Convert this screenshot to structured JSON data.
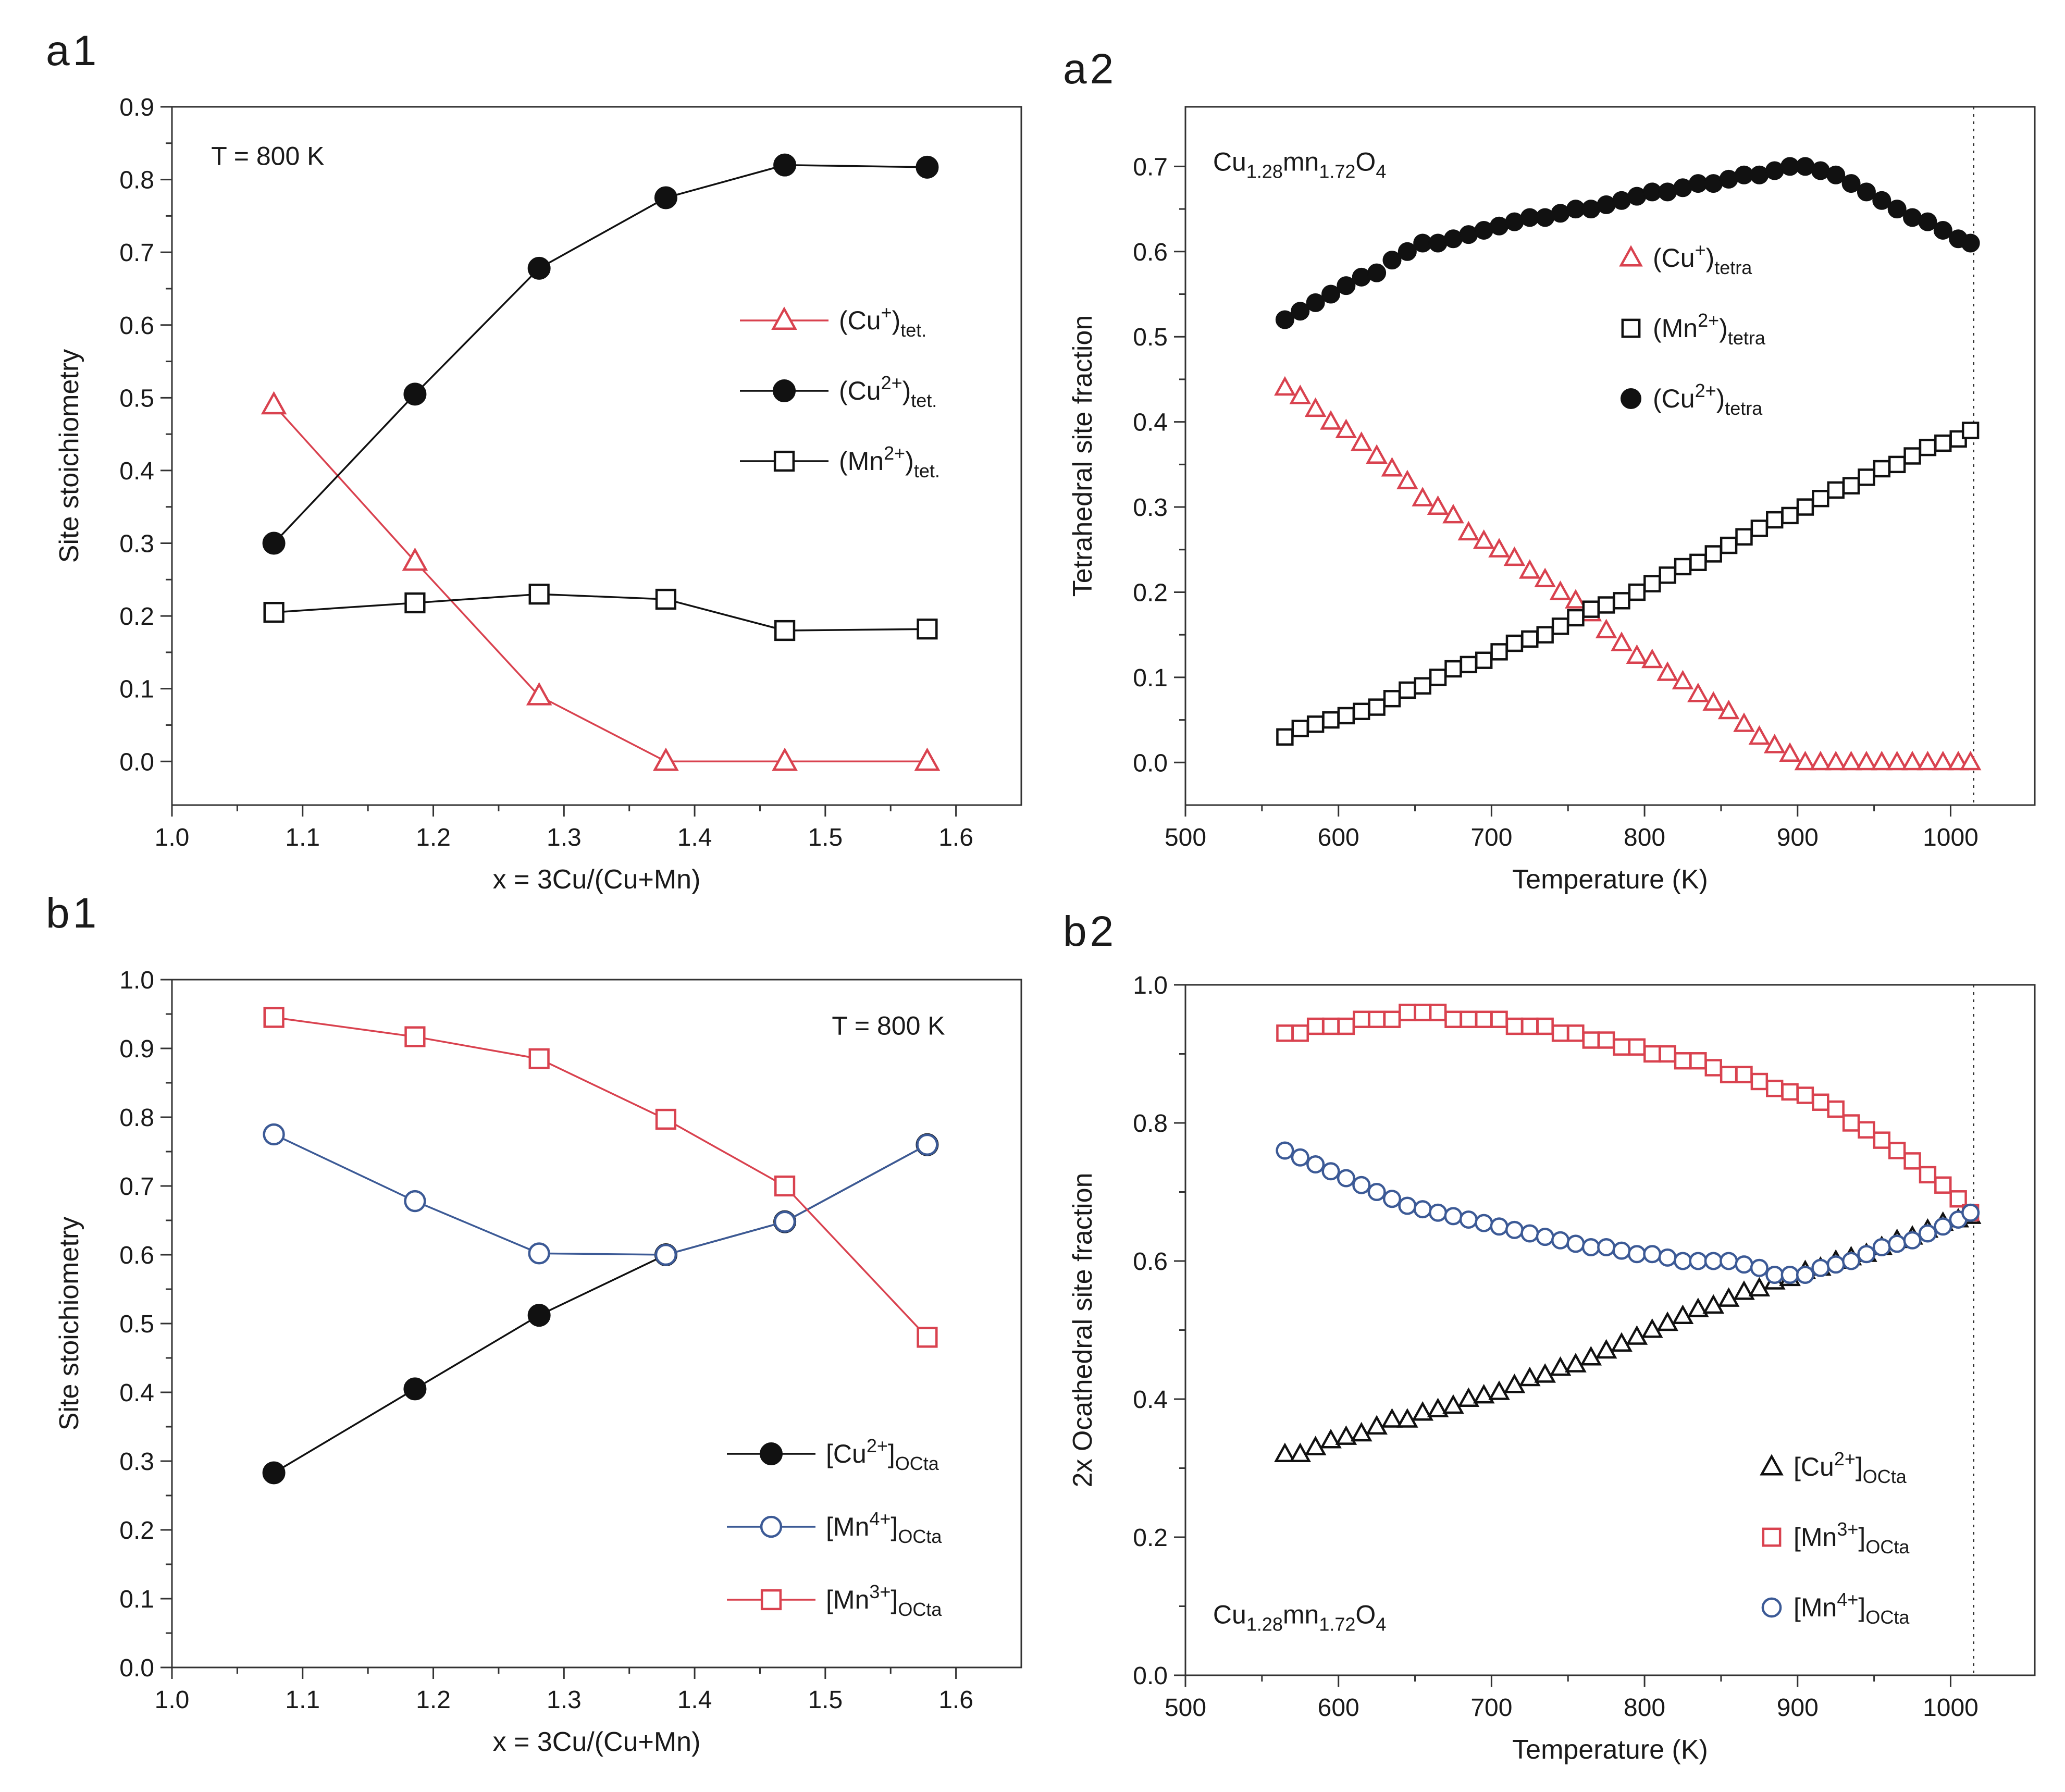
{
  "chart_data": [
    {
      "id": "a1",
      "panel_label": "a1",
      "type": "line",
      "xlabel": "x = 3Cu/(Cu+Mn)",
      "ylabel": "Site stoichiometry",
      "xlim": [
        1.0,
        1.65
      ],
      "ylim": [
        -0.06,
        0.9
      ],
      "xticks": [
        "1.0",
        "1.1",
        "1.2",
        "1.3",
        "1.4",
        "1.5",
        "1.6"
      ],
      "yticks": [
        "0.0",
        "0.1",
        "0.2",
        "0.3",
        "0.4",
        "0.5",
        "0.6",
        "0.7",
        "0.8",
        "0.9"
      ],
      "annotation": {
        "text": "T = 800 K",
        "x": 1.03,
        "y": 0.82
      },
      "legend_position": "center-right",
      "x": [
        1.078,
        1.186,
        1.281,
        1.378,
        1.469,
        1.578
      ],
      "series": [
        {
          "name": "(Cu+)tet.",
          "label": {
            "base": "(Cu",
            "sup": "+",
            "mid": ")",
            "sub": "tet."
          },
          "color": "#d9424f",
          "marker": "triangle-open",
          "values": [
            0.49,
            0.275,
            0.09,
            0.0,
            0.0,
            0.0
          ]
        },
        {
          "name": "(Cu2+)tet.",
          "label": {
            "base": "(Cu",
            "sup": "2+",
            "mid": ")",
            "sub": "tet."
          },
          "color": "#111111",
          "marker": "circle-filled",
          "values": [
            0.3,
            0.505,
            0.678,
            0.775,
            0.82,
            0.817
          ]
        },
        {
          "name": "(Mn2+)tet.",
          "label": {
            "base": "(Mn",
            "sup": "2+",
            "mid": ")",
            "sub": "tet."
          },
          "color": "#111111",
          "marker": "square-open",
          "values": [
            0.205,
            0.218,
            0.23,
            0.223,
            0.18,
            0.182
          ]
        }
      ]
    },
    {
      "id": "a2",
      "panel_label": "a2",
      "type": "scatter",
      "xlabel": "Temperature (K)",
      "ylabel": "Tetrahedral site fraction",
      "xlim": [
        500,
        1055
      ],
      "ylim": [
        -0.05,
        0.77
      ],
      "xticks": [
        "500",
        "600",
        "700",
        "800",
        "900",
        "1000"
      ],
      "yticks": [
        "0.0",
        "0.1",
        "0.2",
        "0.3",
        "0.4",
        "0.5",
        "0.6",
        "0.7"
      ],
      "vline_x": 1015,
      "annotation": {
        "base": "Cu",
        "sub1": "1.28",
        "mid": "mn",
        "sub2": "1.72",
        "tail": "O",
        "sub3": "4",
        "x": 518,
        "y": 0.695
      },
      "legend_position": "center-right",
      "x": [
        565,
        575,
        585,
        595,
        605,
        615,
        625,
        635,
        645,
        655,
        665,
        675,
        685,
        695,
        705,
        715,
        725,
        735,
        745,
        755,
        765,
        775,
        785,
        795,
        805,
        815,
        825,
        835,
        845,
        855,
        865,
        875,
        885,
        895,
        905,
        915,
        925,
        935,
        945,
        955,
        965,
        975,
        985,
        995,
        1005,
        1013
      ],
      "series": [
        {
          "name": "(Cu+)tetra",
          "label": {
            "base": "(Cu",
            "sup": "+",
            "mid": ")",
            "sub": "tetra"
          },
          "color": "#d9424f",
          "marker": "triangle-open",
          "values": [
            0.44,
            0.43,
            0.415,
            0.4,
            0.39,
            0.375,
            0.36,
            0.345,
            0.33,
            0.31,
            0.3,
            0.29,
            0.27,
            0.26,
            0.25,
            0.24,
            0.225,
            0.215,
            0.2,
            0.19,
            0.175,
            0.155,
            0.14,
            0.125,
            0.12,
            0.105,
            0.095,
            0.08,
            0.07,
            0.06,
            0.045,
            0.03,
            0.02,
            0.01,
            0.0,
            0.0,
            0.0,
            0.0,
            0.0,
            0.0,
            0.0,
            0.0,
            0.0,
            0.0,
            0.0,
            0.0
          ]
        },
        {
          "name": "(Mn2+)tetra",
          "label": {
            "base": "(Mn",
            "sup": "2+",
            "mid": ")",
            "sub": "tetra"
          },
          "color": "#111111",
          "marker": "square-open",
          "values": [
            0.03,
            0.04,
            0.045,
            0.05,
            0.055,
            0.06,
            0.065,
            0.075,
            0.085,
            0.09,
            0.1,
            0.11,
            0.115,
            0.12,
            0.13,
            0.14,
            0.145,
            0.15,
            0.16,
            0.17,
            0.18,
            0.185,
            0.19,
            0.2,
            0.21,
            0.22,
            0.23,
            0.235,
            0.245,
            0.255,
            0.265,
            0.275,
            0.285,
            0.29,
            0.3,
            0.31,
            0.32,
            0.325,
            0.335,
            0.345,
            0.35,
            0.36,
            0.37,
            0.375,
            0.38,
            0.39
          ]
        },
        {
          "name": "(Cu2+)tetra",
          "label": {
            "base": "(Cu",
            "sup": "2+",
            "mid": ")",
            "sub": "tetra"
          },
          "color": "#111111",
          "marker": "circle-filled",
          "values": [
            0.52,
            0.53,
            0.54,
            0.55,
            0.56,
            0.57,
            0.575,
            0.59,
            0.6,
            0.61,
            0.61,
            0.615,
            0.62,
            0.625,
            0.63,
            0.635,
            0.64,
            0.64,
            0.645,
            0.65,
            0.65,
            0.655,
            0.66,
            0.665,
            0.67,
            0.67,
            0.675,
            0.68,
            0.68,
            0.685,
            0.69,
            0.69,
            0.695,
            0.7,
            0.7,
            0.695,
            0.69,
            0.68,
            0.67,
            0.66,
            0.65,
            0.64,
            0.635,
            0.625,
            0.615,
            0.61
          ]
        }
      ]
    },
    {
      "id": "b1",
      "panel_label": "b1",
      "type": "line",
      "xlabel": "x = 3Cu/(Cu+Mn)",
      "ylabel": "Site stoichiometry",
      "xlim": [
        1.0,
        1.65
      ],
      "ylim": [
        0.0,
        1.0
      ],
      "xticks": [
        "1.0",
        "1.1",
        "1.2",
        "1.3",
        "1.4",
        "1.5",
        "1.6"
      ],
      "yticks": [
        "0.0",
        "0.1",
        "0.2",
        "0.3",
        "0.4",
        "0.5",
        "0.6",
        "0.7",
        "0.8",
        "0.9",
        "1.0"
      ],
      "annotation": {
        "text": "T = 800 K",
        "x": 1.505,
        "y": 0.92
      },
      "legend_position": "bottom-right",
      "x": [
        1.078,
        1.186,
        1.281,
        1.378,
        1.469,
        1.578
      ],
      "series": [
        {
          "name": "[Cu2+]OCta",
          "label": {
            "base": "[Cu",
            "sup": "2+",
            "mid": "]",
            "sub": "OCta"
          },
          "color": "#111111",
          "marker": "circle-filled",
          "values": [
            0.283,
            0.405,
            0.512,
            0.6,
            0.648,
            0.76
          ]
        },
        {
          "name": "[Mn4+]OCta",
          "label": {
            "base": "[Mn",
            "sup": "4+",
            "mid": "]",
            "sub": "OCta"
          },
          "color": "#3c5a96",
          "marker": "circle-open",
          "values": [
            0.775,
            0.678,
            0.602,
            0.6,
            0.648,
            0.76
          ]
        },
        {
          "name": "[Mn3+]OCta",
          "label": {
            "base": "[Mn",
            "sup": "3+",
            "mid": "]",
            "sub": "OCta"
          },
          "color": "#d9424f",
          "marker": "square-open",
          "values": [
            0.945,
            0.917,
            0.885,
            0.797,
            0.7,
            0.48
          ]
        }
      ]
    },
    {
      "id": "b2",
      "panel_label": "b2",
      "type": "scatter",
      "xlabel": "Temperature (K)",
      "ylabel": "2x Ocathedral site fraction",
      "xlim": [
        500,
        1055
      ],
      "ylim": [
        0.0,
        1.0
      ],
      "xticks": [
        "500",
        "600",
        "700",
        "800",
        "900",
        "1000"
      ],
      "yticks": [
        "0.0",
        "0.2",
        "0.4",
        "0.6",
        "0.8",
        "1.0"
      ],
      "vline_x": 1015,
      "annotation": {
        "base": "Cu",
        "sub1": "1.28",
        "mid": "mn",
        "sub2": "1.72",
        "tail": "O",
        "sub3": "4",
        "x": 518,
        "y": 0.075
      },
      "legend_position": "bottom-right",
      "x": [
        565,
        575,
        585,
        595,
        605,
        615,
        625,
        635,
        645,
        655,
        665,
        675,
        685,
        695,
        705,
        715,
        725,
        735,
        745,
        755,
        765,
        775,
        785,
        795,
        805,
        815,
        825,
        835,
        845,
        855,
        865,
        875,
        885,
        895,
        905,
        915,
        925,
        935,
        945,
        955,
        965,
        975,
        985,
        995,
        1005,
        1013
      ],
      "series": [
        {
          "name": "[Cu2+]OCta",
          "label": {
            "base": "[Cu",
            "sup": "2+",
            "mid": "]",
            "sub": "OCta"
          },
          "color": "#111111",
          "marker": "triangle-open",
          "values": [
            0.32,
            0.32,
            0.33,
            0.34,
            0.345,
            0.35,
            0.36,
            0.37,
            0.37,
            0.38,
            0.385,
            0.39,
            0.4,
            0.405,
            0.41,
            0.42,
            0.43,
            0.435,
            0.445,
            0.45,
            0.46,
            0.47,
            0.48,
            0.49,
            0.5,
            0.51,
            0.52,
            0.53,
            0.535,
            0.545,
            0.555,
            0.56,
            0.57,
            0.575,
            0.585,
            0.59,
            0.6,
            0.605,
            0.61,
            0.62,
            0.63,
            0.635,
            0.645,
            0.655,
            0.66,
            0.665
          ]
        },
        {
          "name": "[Mn3+]OCta",
          "label": {
            "base": "[Mn",
            "sup": "3+",
            "mid": "]",
            "sub": "OCta"
          },
          "color": "#d9424f",
          "marker": "square-open",
          "values": [
            0.93,
            0.93,
            0.94,
            0.94,
            0.94,
            0.95,
            0.95,
            0.95,
            0.96,
            0.96,
            0.96,
            0.95,
            0.95,
            0.95,
            0.95,
            0.94,
            0.94,
            0.94,
            0.93,
            0.93,
            0.92,
            0.92,
            0.91,
            0.91,
            0.9,
            0.9,
            0.89,
            0.89,
            0.88,
            0.87,
            0.87,
            0.86,
            0.85,
            0.845,
            0.84,
            0.83,
            0.82,
            0.8,
            0.79,
            0.775,
            0.76,
            0.745,
            0.725,
            0.71,
            0.69,
            0.67
          ]
        },
        {
          "name": "[Mn4+]OCta",
          "label": {
            "base": "[Mn",
            "sup": "4+",
            "mid": "]",
            "sub": "OCta"
          },
          "color": "#3c5a96",
          "marker": "circle-open",
          "values": [
            0.76,
            0.75,
            0.74,
            0.73,
            0.72,
            0.71,
            0.7,
            0.69,
            0.68,
            0.675,
            0.67,
            0.665,
            0.66,
            0.655,
            0.65,
            0.645,
            0.64,
            0.635,
            0.63,
            0.625,
            0.62,
            0.62,
            0.615,
            0.61,
            0.61,
            0.605,
            0.6,
            0.6,
            0.6,
            0.6,
            0.595,
            0.59,
            0.58,
            0.58,
            0.58,
            0.59,
            0.595,
            0.6,
            0.61,
            0.62,
            0.625,
            0.63,
            0.64,
            0.65,
            0.66,
            0.67
          ]
        }
      ]
    }
  ]
}
